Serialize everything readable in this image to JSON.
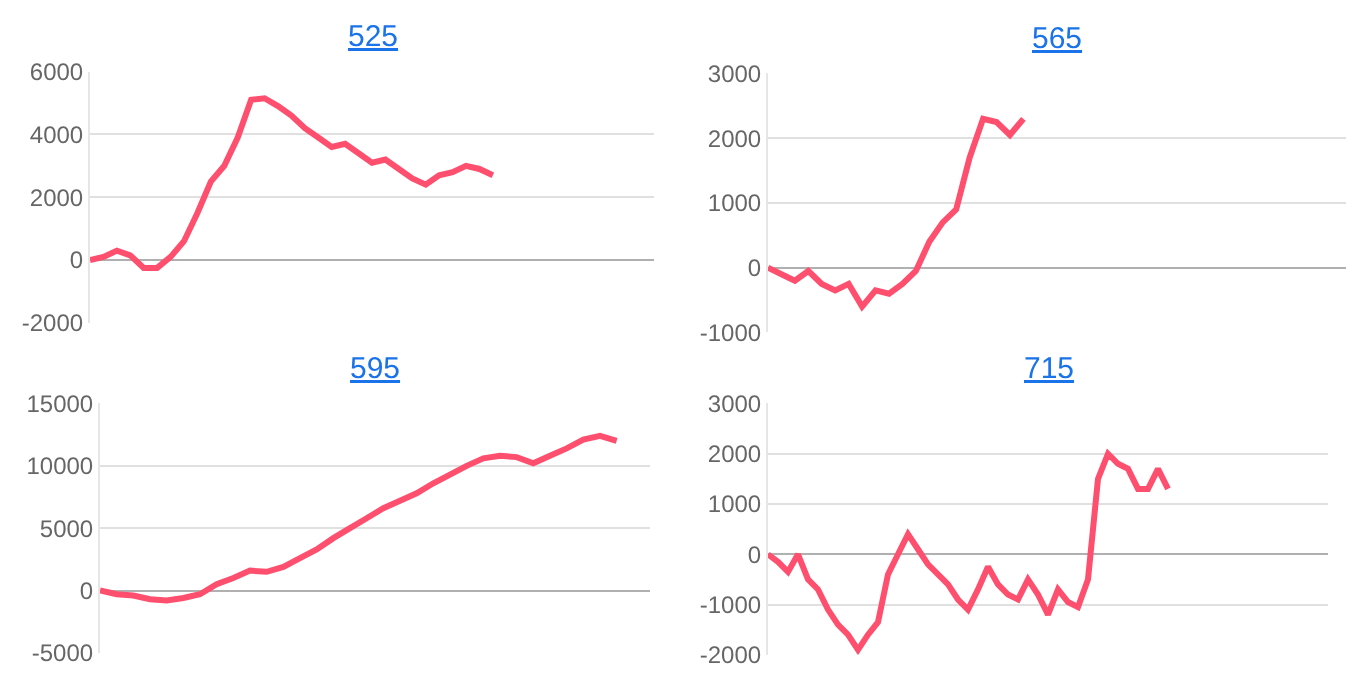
{
  "chart_data": [
    {
      "type": "line",
      "title": "525",
      "categories": [
        null,
        null,
        null,
        null,
        null,
        null,
        null,
        null,
        null,
        null,
        null,
        null,
        null,
        null,
        null,
        null,
        null,
        null,
        null,
        null,
        null,
        null,
        null,
        null,
        null,
        null,
        null,
        null,
        null,
        null,
        null,
        null,
        null,
        null,
        null,
        null,
        null,
        null,
        null,
        null,
        null,
        null,
        null
      ],
      "series": [
        {
          "color": "#ff4f6e",
          "values": [
            0,
            100,
            300,
            150,
            -250,
            -250,
            100,
            600,
            1500,
            2500,
            3000,
            3900,
            5100,
            5150,
            4900,
            4600,
            4200,
            3900,
            3600,
            3700,
            3400,
            3100,
            3200,
            2900,
            2600,
            2400,
            2700,
            2800,
            3000,
            2900,
            2700,
            null,
            null,
            null,
            null,
            null,
            null,
            null,
            null,
            null,
            null,
            null,
            null
          ]
        }
      ],
      "ylim": [
        -2000,
        6000
      ],
      "yticks": [
        -2000,
        0,
        2000,
        4000,
        6000
      ],
      "grid": "y",
      "tick_labels": "y",
      "marker": "none",
      "line_style": "solid"
    },
    {
      "type": "line",
      "title": "565",
      "categories": [
        null,
        null,
        null,
        null,
        null,
        null,
        null,
        null,
        null,
        null,
        null,
        null,
        null,
        null,
        null,
        null,
        null,
        null,
        null,
        null,
        null,
        null,
        null,
        null,
        null,
        null,
        null,
        null,
        null,
        null,
        null,
        null,
        null,
        null,
        null,
        null,
        null,
        null,
        null,
        null,
        null,
        null,
        null,
        null
      ],
      "series": [
        {
          "color": "#ff4f6e",
          "values": [
            0,
            -100,
            -200,
            -50,
            -250,
            -350,
            -250,
            -600,
            -350,
            -400,
            -250,
            -50,
            400,
            700,
            900,
            1700,
            2300,
            2250,
            2050,
            2300,
            null,
            null,
            null,
            null,
            null,
            null,
            null,
            null,
            null,
            null,
            null,
            null,
            null,
            null,
            null,
            null,
            null,
            null,
            null,
            null,
            null,
            null,
            null,
            null
          ]
        }
      ],
      "ylim": [
        -1000,
        3000
      ],
      "yticks": [
        -1000,
        0,
        1000,
        2000,
        3000
      ],
      "grid": "y",
      "tick_labels": "y",
      "marker": "none",
      "line_style": "solid"
    },
    {
      "type": "line",
      "title": "595",
      "categories": [
        null,
        null,
        null,
        null,
        null,
        null,
        null,
        null,
        null,
        null,
        null,
        null,
        null,
        null,
        null,
        null,
        null,
        null,
        null,
        null,
        null,
        null,
        null,
        null,
        null,
        null,
        null,
        null,
        null,
        null,
        null,
        null,
        null,
        null
      ],
      "series": [
        {
          "color": "#ff4f6e",
          "values": [
            0,
            -300,
            -400,
            -700,
            -800,
            -600,
            -300,
            500,
            1000,
            1600,
            1500,
            1900,
            2600,
            3300,
            4200,
            5000,
            5800,
            6600,
            7200,
            7800,
            8600,
            9300,
            10000,
            10600,
            10800,
            10700,
            10200,
            10800,
            11400,
            12100,
            12400,
            12000,
            null,
            null
          ]
        }
      ],
      "ylim": [
        -5000,
        15000
      ],
      "yticks": [
        -5000,
        0,
        5000,
        10000,
        15000
      ],
      "grid": "y",
      "tick_labels": "y",
      "marker": "none",
      "line_style": "solid"
    },
    {
      "type": "line",
      "title": "715",
      "categories": [
        null,
        null,
        null,
        null,
        null,
        null,
        null,
        null,
        null,
        null,
        null,
        null,
        null,
        null,
        null,
        null,
        null,
        null,
        null,
        null,
        null,
        null,
        null,
        null,
        null,
        null,
        null,
        null,
        null,
        null,
        null,
        null,
        null,
        null,
        null,
        null,
        null,
        null,
        null,
        null,
        null,
        null,
        null,
        null,
        null,
        null,
        null,
        null,
        null,
        null,
        null,
        null,
        null,
        null,
        null,
        null,
        null
      ],
      "series": [
        {
          "color": "#ff4f6e",
          "values": [
            0,
            -150,
            -350,
            0,
            -500,
            -700,
            -1100,
            -1400,
            -1600,
            -1900,
            -1600,
            -1350,
            -400,
            0,
            400,
            100,
            -200,
            -400,
            -600,
            -900,
            -1100,
            -700,
            -250,
            -600,
            -800,
            -900,
            -500,
            -800,
            -1200,
            -700,
            -950,
            -1050,
            -500,
            1500,
            2000,
            1800,
            1700,
            1300,
            1300,
            1700,
            1300,
            null,
            null,
            null,
            null,
            null,
            null,
            null,
            null,
            null,
            null,
            null,
            null,
            null,
            null,
            null,
            null
          ]
        }
      ],
      "ylim": [
        -2000,
        3000
      ],
      "yticks": [
        -2000,
        -1000,
        0,
        1000,
        2000,
        3000
      ],
      "grid": "y",
      "tick_labels": "y",
      "marker": "none",
      "line_style": "solid"
    }
  ]
}
